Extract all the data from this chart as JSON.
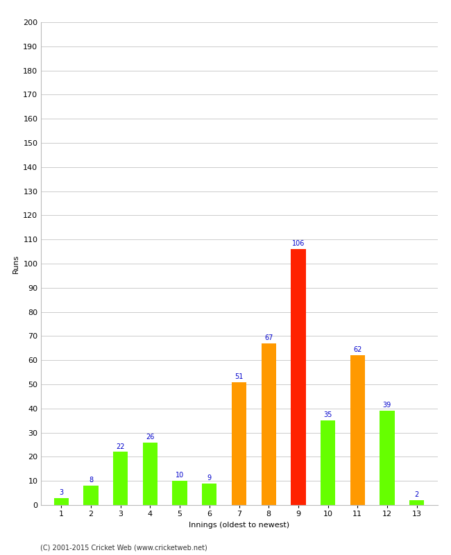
{
  "innings": [
    1,
    2,
    3,
    4,
    5,
    6,
    7,
    8,
    9,
    10,
    11,
    12,
    13
  ],
  "runs": [
    3,
    8,
    22,
    26,
    10,
    9,
    51,
    67,
    106,
    35,
    62,
    39,
    2
  ],
  "colors": [
    "#66ff00",
    "#66ff00",
    "#66ff00",
    "#66ff00",
    "#66ff00",
    "#66ff00",
    "#ff9900",
    "#ff9900",
    "#ff2200",
    "#66ff00",
    "#ff9900",
    "#66ff00",
    "#66ff00"
  ],
  "xlabel": "Innings (oldest to newest)",
  "ylabel": "Runs",
  "ylim": [
    0,
    200
  ],
  "yticks": [
    0,
    10,
    20,
    30,
    40,
    50,
    60,
    70,
    80,
    90,
    100,
    110,
    120,
    130,
    140,
    150,
    160,
    170,
    180,
    190,
    200
  ],
  "label_color": "#0000cc",
  "label_fontsize": 7,
  "footnote": "(C) 2001-2015 Cricket Web (www.cricketweb.net)",
  "background_color": "#ffffff",
  "grid_color": "#cccccc",
  "bar_width": 0.5
}
